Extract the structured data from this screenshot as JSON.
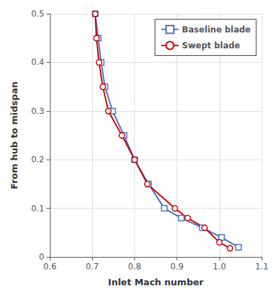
{
  "chart_data": {
    "type": "line",
    "xlabel": "Inlet Mach number",
    "ylabel": "From hub to midspan",
    "series": [
      {
        "name": "Baseline blade",
        "color": "#4472C4",
        "marker": "square",
        "x": [
          0.707,
          0.714,
          0.721,
          0.73,
          0.748,
          0.775,
          0.8,
          0.833,
          0.87,
          0.91,
          0.96,
          1.005,
          1.045
        ],
        "values": [
          0.5,
          0.45,
          0.4,
          0.35,
          0.3,
          0.25,
          0.2,
          0.15,
          0.1,
          0.08,
          0.06,
          0.04,
          0.02
        ]
      },
      {
        "name": "Swept blade",
        "color": "#CC0000",
        "marker": "circle",
        "x": [
          0.707,
          0.71,
          0.716,
          0.725,
          0.738,
          0.77,
          0.8,
          0.83,
          0.895,
          0.925,
          0.965,
          1.0,
          1.025
        ],
        "values": [
          0.5,
          0.45,
          0.4,
          0.35,
          0.3,
          0.25,
          0.2,
          0.15,
          0.1,
          0.08,
          0.06,
          0.03,
          0.018
        ]
      }
    ],
    "xlim": [
      0.6,
      1.1
    ],
    "ylim": [
      0.0,
      0.5
    ],
    "xticks": [
      0.6,
      0.7,
      0.8,
      0.9,
      {
        "value": 1.0,
        "label": "1.0"
      },
      1.1
    ],
    "yticks": [
      0,
      0.1,
      0.2,
      0.3,
      0.4,
      0.5
    ],
    "grid": true,
    "legend": "upper right"
  }
}
